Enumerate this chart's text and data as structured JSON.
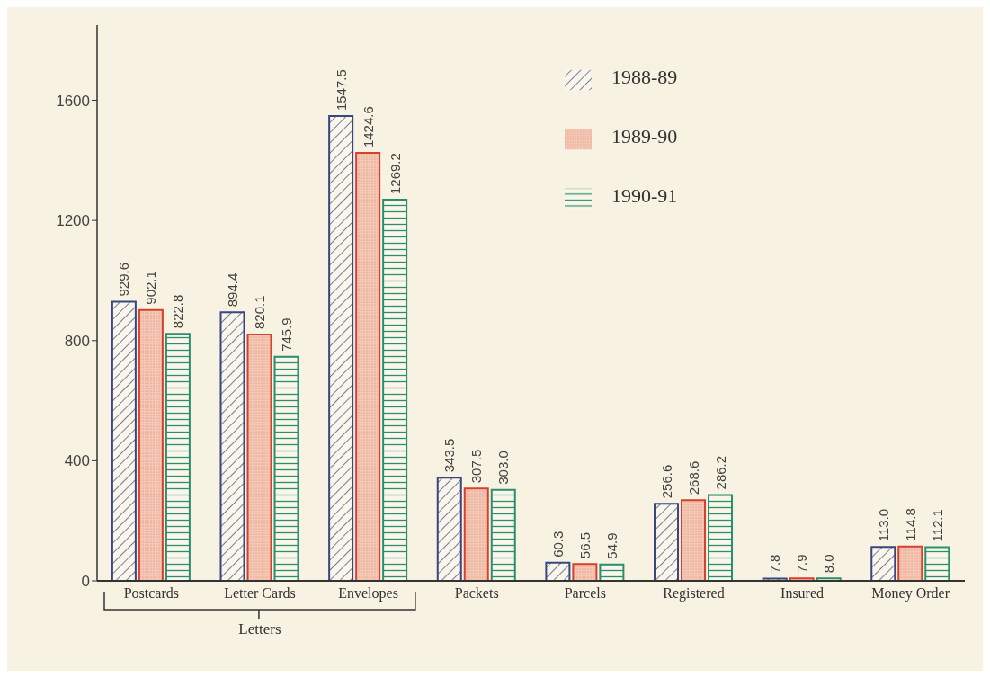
{
  "chart_data": {
    "type": "bar",
    "categories": [
      "Postcards",
      "Letter Cards",
      "Envelopes",
      "Packets",
      "Parcels",
      "Registered",
      "Insured",
      "Money Order"
    ],
    "series": [
      {
        "name": "1988-89",
        "color": "#3a4680",
        "values": [
          929.6,
          894.4,
          1547.5,
          343.5,
          60.3,
          256.6,
          7.8,
          113.0
        ],
        "value_labels": [
          "929.6",
          "894.4",
          "1547.5",
          "343.5",
          "60.3",
          "256.6",
          "7.8",
          "113.0"
        ]
      },
      {
        "name": "1989-90",
        "color": "#d8402e",
        "values": [
          902.1,
          820.1,
          1424.6,
          307.5,
          56.5,
          268.6,
          7.9,
          114.8
        ],
        "value_labels": [
          "902.1",
          "820.1",
          "1424.6",
          "307.5",
          "56.5",
          "268.6",
          "7.9",
          "114.8"
        ]
      },
      {
        "name": "1990-91",
        "color": "#2a8f6e",
        "values": [
          822.8,
          745.9,
          1269.2,
          303.0,
          54.9,
          286.2,
          8.0,
          112.1
        ],
        "value_labels": [
          "822.8",
          "745.9",
          "1269.2",
          "303.0",
          "54.9",
          "286.2",
          "8.0",
          "112.1"
        ]
      }
    ],
    "ylim": [
      0,
      1850
    ],
    "yticks": [
      0,
      400,
      800,
      1200,
      1600
    ],
    "grid": false,
    "legend": "top right",
    "annotations": [
      "Letters"
    ]
  }
}
